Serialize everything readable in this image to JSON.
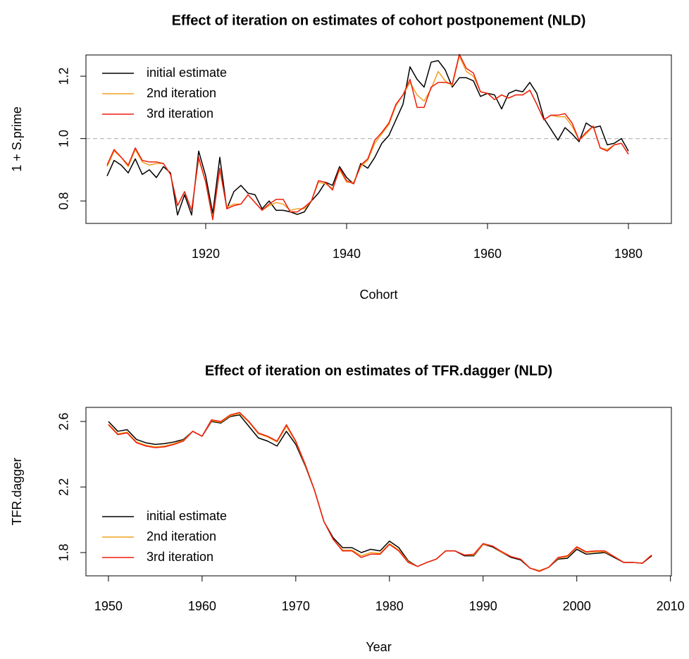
{
  "chart_data": [
    {
      "type": "line",
      "title": "Effect of iteration on estimates of cohort postponement (NLD)",
      "xlabel": "Cohort",
      "ylabel": "1 + S.prime",
      "x": [
        1906,
        1907,
        1908,
        1909,
        1910,
        1911,
        1912,
        1913,
        1914,
        1915,
        1916,
        1917,
        1918,
        1919,
        1920,
        1921,
        1922,
        1923,
        1924,
        1925,
        1926,
        1927,
        1928,
        1929,
        1930,
        1931,
        1932,
        1933,
        1934,
        1935,
        1936,
        1937,
        1938,
        1939,
        1940,
        1941,
        1942,
        1943,
        1944,
        1945,
        1946,
        1947,
        1948,
        1949,
        1950,
        1951,
        1952,
        1953,
        1954,
        1955,
        1956,
        1957,
        1958,
        1959,
        1960,
        1961,
        1962,
        1963,
        1964,
        1965,
        1966,
        1967,
        1968,
        1969,
        1970,
        1971,
        1972,
        1973,
        1974,
        1975,
        1976,
        1977,
        1978,
        1979,
        1980
      ],
      "series": [
        {
          "name": "initial estimate",
          "color": "#000000",
          "values": [
            0.88,
            0.93,
            0.915,
            0.89,
            0.935,
            0.885,
            0.9,
            0.875,
            0.91,
            0.89,
            0.755,
            0.82,
            0.755,
            0.96,
            0.88,
            0.76,
            0.94,
            0.775,
            0.83,
            0.85,
            0.825,
            0.82,
            0.775,
            0.8,
            0.77,
            0.77,
            0.765,
            0.757,
            0.765,
            0.8,
            0.825,
            0.86,
            0.85,
            0.91,
            0.875,
            0.855,
            0.92,
            0.905,
            0.94,
            0.985,
            1.01,
            1.06,
            1.11,
            1.23,
            1.19,
            1.165,
            1.245,
            1.25,
            1.22,
            1.165,
            1.195,
            1.195,
            1.185,
            1.135,
            1.145,
            1.14,
            1.095,
            1.145,
            1.155,
            1.15,
            1.18,
            1.145,
            1.065,
            1.03,
            0.995,
            1.035,
            1.015,
            0.99,
            1.05,
            1.035,
            1.04,
            0.98,
            0.985,
            1.0,
            0.96
          ]
        },
        {
          "name": "2nd iteration",
          "color": "#f0a020",
          "values": [
            0.91,
            0.96,
            0.94,
            0.91,
            0.965,
            0.925,
            0.915,
            0.92,
            0.92,
            0.885,
            0.785,
            0.83,
            0.77,
            0.935,
            0.86,
            0.745,
            0.9,
            0.78,
            0.79,
            0.79,
            0.82,
            0.795,
            0.77,
            0.785,
            0.795,
            0.79,
            0.77,
            0.775,
            0.775,
            0.8,
            0.86,
            0.855,
            0.84,
            0.9,
            0.86,
            0.86,
            0.91,
            0.93,
            0.985,
            1.015,
            1.045,
            1.105,
            1.14,
            1.18,
            1.14,
            1.12,
            1.16,
            1.215,
            1.185,
            1.17,
            1.265,
            1.215,
            1.2,
            1.15,
            1.145,
            1.125,
            1.14,
            1.13,
            1.14,
            1.14,
            1.155,
            1.11,
            1.06,
            1.075,
            1.07,
            1.07,
            1.04,
            0.995,
            1.015,
            1.04,
            0.97,
            0.965,
            0.98,
            0.985,
            0.95
          ]
        },
        {
          "name": "3rd iteration",
          "color": "#ee1c0e",
          "values": [
            0.915,
            0.965,
            0.94,
            0.915,
            0.97,
            0.93,
            0.925,
            0.925,
            0.92,
            0.885,
            0.785,
            0.83,
            0.77,
            0.94,
            0.86,
            0.74,
            0.905,
            0.775,
            0.785,
            0.79,
            0.82,
            0.795,
            0.77,
            0.79,
            0.805,
            0.805,
            0.765,
            0.765,
            0.78,
            0.8,
            0.865,
            0.86,
            0.835,
            0.905,
            0.865,
            0.855,
            0.915,
            0.935,
            0.995,
            1.02,
            1.05,
            1.11,
            1.14,
            1.19,
            1.1,
            1.1,
            1.165,
            1.18,
            1.18,
            1.175,
            1.27,
            1.225,
            1.21,
            1.15,
            1.145,
            1.125,
            1.14,
            1.13,
            1.14,
            1.14,
            1.155,
            1.11,
            1.06,
            1.075,
            1.075,
            1.08,
            1.05,
            0.995,
            1.02,
            1.04,
            0.97,
            0.96,
            0.98,
            0.985,
            0.95
          ]
        }
      ],
      "xlim": [
        1903,
        1986.1
      ],
      "xticks": [
        1920,
        1940,
        1960,
        1980
      ],
      "ylim": [
        0.728,
        1.268
      ],
      "yticks": [
        0.8,
        {
          "value": 1,
          "label": "1.0"
        },
        1.2
      ],
      "hline": 1,
      "legend": "topleft"
    },
    {
      "type": "line",
      "title": "Effect of iteration on estimates of TFR.dagger (NLD)",
      "xlabel": "Year",
      "ylabel": "TFR.dagger",
      "x": [
        1950,
        1951,
        1952,
        1953,
        1954,
        1955,
        1956,
        1957,
        1958,
        1959,
        1960,
        1961,
        1962,
        1963,
        1964,
        1965,
        1966,
        1967,
        1968,
        1969,
        1970,
        1971,
        1972,
        1973,
        1974,
        1975,
        1976,
        1977,
        1978,
        1979,
        1980,
        1981,
        1982,
        1983,
        1984,
        1985,
        1986,
        1987,
        1988,
        1989,
        1990,
        1991,
        1992,
        1993,
        1994,
        1995,
        1996,
        1997,
        1998,
        1999,
        2000,
        2001,
        2002,
        2003,
        2004,
        2005,
        2006,
        2007,
        2008
      ],
      "series": [
        {
          "name": "initial estimate",
          "color": "#000000",
          "values": [
            2.6,
            2.54,
            2.55,
            2.49,
            2.47,
            2.46,
            2.465,
            2.475,
            2.49,
            2.54,
            2.51,
            2.6,
            2.59,
            2.63,
            2.64,
            2.57,
            2.5,
            2.48,
            2.45,
            2.54,
            2.46,
            2.33,
            2.18,
            1.99,
            1.89,
            1.83,
            1.83,
            1.8,
            1.82,
            1.81,
            1.87,
            1.83,
            1.75,
            1.715,
            1.74,
            1.76,
            1.81,
            1.81,
            1.78,
            1.78,
            1.85,
            1.835,
            1.8,
            1.77,
            1.755,
            1.705,
            1.69,
            1.71,
            1.76,
            1.765,
            1.82,
            1.79,
            1.795,
            1.8,
            1.77,
            1.74,
            1.74,
            1.735,
            1.78
          ]
        },
        {
          "name": "2nd iteration",
          "color": "#f0a020",
          "values": [
            2.585,
            2.525,
            2.535,
            2.475,
            2.455,
            2.445,
            2.45,
            2.465,
            2.485,
            2.54,
            2.51,
            2.605,
            2.595,
            2.635,
            2.65,
            2.595,
            2.525,
            2.505,
            2.475,
            2.57,
            2.475,
            2.335,
            2.18,
            1.99,
            1.88,
            1.815,
            1.815,
            1.78,
            1.8,
            1.795,
            1.855,
            1.815,
            1.745,
            1.715,
            1.74,
            1.76,
            1.81,
            1.81,
            1.785,
            1.785,
            1.85,
            1.84,
            1.8,
            1.775,
            1.76,
            1.705,
            1.69,
            1.71,
            1.765,
            1.775,
            1.83,
            1.8,
            1.805,
            1.805,
            1.775,
            1.74,
            1.74,
            1.735,
            1.785
          ]
        },
        {
          "name": "3rd iteration",
          "color": "#ee1c0e",
          "values": [
            2.58,
            2.52,
            2.53,
            2.47,
            2.45,
            2.44,
            2.445,
            2.46,
            2.48,
            2.54,
            2.51,
            2.61,
            2.6,
            2.64,
            2.655,
            2.6,
            2.53,
            2.51,
            2.48,
            2.58,
            2.48,
            2.34,
            2.18,
            1.99,
            1.88,
            1.81,
            1.81,
            1.77,
            1.79,
            1.79,
            1.85,
            1.81,
            1.74,
            1.715,
            1.74,
            1.76,
            1.81,
            1.81,
            1.785,
            1.79,
            1.855,
            1.84,
            1.805,
            1.775,
            1.76,
            1.705,
            1.685,
            1.71,
            1.77,
            1.78,
            1.835,
            1.805,
            1.81,
            1.81,
            1.775,
            1.74,
            1.74,
            1.735,
            1.785
          ]
        }
      ],
      "xlim": [
        1947.6,
        2010.1
      ],
      "xticks": [
        1950,
        1960,
        1970,
        1980,
        1990,
        2000,
        2010
      ],
      "ylim": [
        1.658,
        2.686
      ],
      "yticks": [
        1.8,
        2.2,
        2.6
      ],
      "legend": "bottomleft"
    }
  ]
}
